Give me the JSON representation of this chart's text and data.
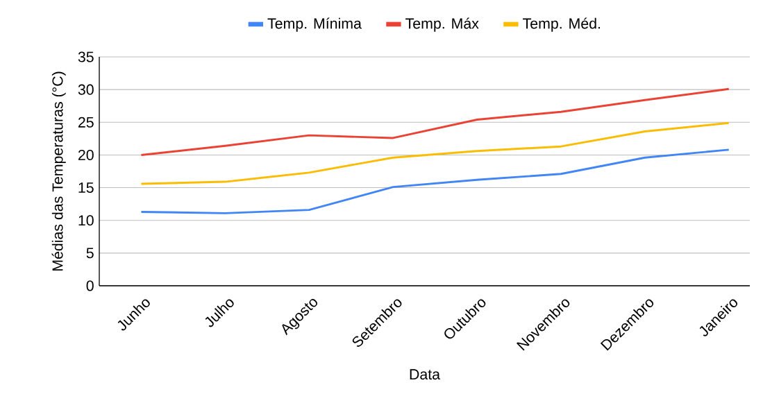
{
  "chart_data": {
    "type": "line",
    "xlabel": "Data",
    "ylabel": "Médias das Temperaturas (°C)",
    "categories": [
      "Junho",
      "Julho",
      "Agosto",
      "Setembro",
      "Outubro",
      "Novembro",
      "Dezembro",
      "Janeiro"
    ],
    "series": [
      {
        "name": "Temp. Mínima",
        "color": "#4285f4",
        "values": [
          11.3,
          11.1,
          11.6,
          15.1,
          16.2,
          17.1,
          19.6,
          20.8
        ]
      },
      {
        "name": "Temp. Máx",
        "color": "#ea4335",
        "values": [
          20.0,
          21.4,
          23.0,
          22.6,
          25.4,
          26.6,
          28.4,
          30.1
        ]
      },
      {
        "name": "Temp. Méd.",
        "color": "#fbbc04",
        "values": [
          15.6,
          15.9,
          17.3,
          19.6,
          20.6,
          21.3,
          23.6,
          24.9
        ]
      }
    ],
    "ylim": [
      0,
      35
    ],
    "yticks": [
      0,
      5,
      10,
      15,
      20,
      25,
      30,
      35
    ],
    "grid": "y",
    "legend": "top",
    "marker": "none",
    "line_style": "solid"
  }
}
